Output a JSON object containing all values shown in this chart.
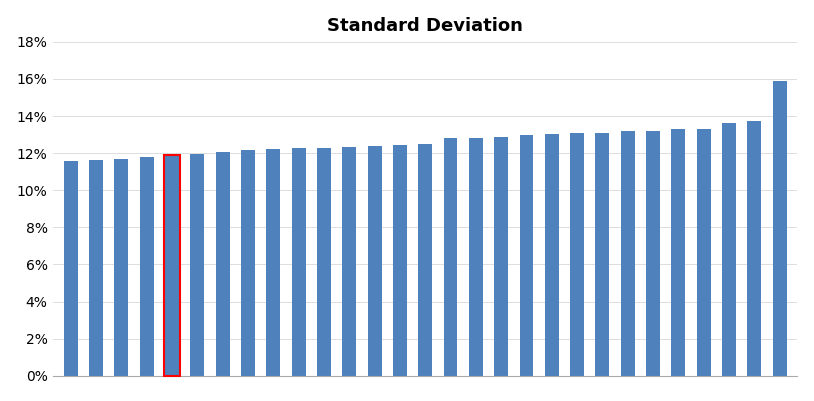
{
  "title": "Standard Deviation",
  "title_fontsize": 13,
  "title_fontweight": "bold",
  "bar_color": "#4f81bd",
  "highlighted_bar_index": 4,
  "highlight_color": "red",
  "background_color": "#ffffff",
  "values": [
    0.116,
    0.1163,
    0.1168,
    0.1178,
    0.119,
    0.1198,
    0.1205,
    0.1215,
    0.122,
    0.1225,
    0.1228,
    0.1235,
    0.124,
    0.1242,
    0.1248,
    0.128,
    0.1283,
    0.1288,
    0.13,
    0.1305,
    0.1308,
    0.131,
    0.1318,
    0.132,
    0.1328,
    0.1332,
    0.136,
    0.1372,
    0.159
  ],
  "ylim": [
    0,
    0.18
  ],
  "yticks": [
    0.0,
    0.02,
    0.04,
    0.06,
    0.08,
    0.1,
    0.12,
    0.14,
    0.16,
    0.18
  ],
  "ytick_labels": [
    "0%",
    "2%",
    "4%",
    "6%",
    "8%",
    "10%",
    "12%",
    "14%",
    "16%",
    "18%"
  ],
  "bar_width": 0.55
}
